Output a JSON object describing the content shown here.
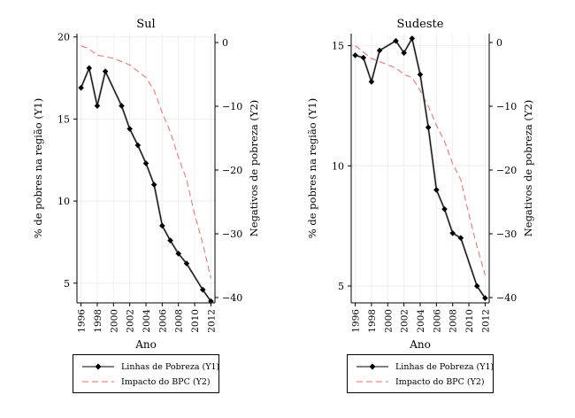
{
  "chart_data": [
    {
      "type": "line",
      "title": "Sul",
      "xlabel": "Ano",
      "ylabel_left": "% de pobres na região (Y1)",
      "ylabel_right": "Negativos de pobreza (Y2)",
      "x": [
        1996,
        1997,
        1998,
        1999,
        2001,
        2002,
        2003,
        2004,
        2005,
        2006,
        2007,
        2008,
        2009,
        2011,
        2012
      ],
      "x_ticks": [
        1996,
        1998,
        2000,
        2002,
        2004,
        2006,
        2008,
        2010,
        2012
      ],
      "xlim": [
        1995.5,
        2012.5
      ],
      "y1_ticks": [
        5,
        10,
        15,
        20
      ],
      "y1_lim": [
        3.8,
        20.2
      ],
      "y2_ticks": [
        0,
        -10,
        -20,
        -30,
        -40
      ],
      "y2_lim": [
        -40,
        0
      ],
      "series": [
        {
          "name": "Linhas de Pobreza (Y1)",
          "axis": "left",
          "style": "line-diamond",
          "values": [
            16.9,
            18.1,
            15.8,
            17.9,
            15.8,
            14.4,
            13.4,
            12.3,
            11.0,
            8.5,
            7.6,
            6.8,
            6.2,
            4.6,
            3.9
          ]
        },
        {
          "name": "Impacto do BPC (Y2)",
          "axis": "right",
          "style": "dashed",
          "x": [
            1996,
            1997,
            1998,
            1999,
            2000,
            2001,
            2002,
            2003,
            2004,
            2005,
            2006,
            2007,
            2008,
            2009,
            2010,
            2011,
            2012
          ],
          "values": [
            -0.5,
            -1.0,
            -2.0,
            -2.2,
            -2.5,
            -3.0,
            -3.5,
            -4.5,
            -5.5,
            -7.5,
            -11.0,
            -14.0,
            -18.0,
            -21.5,
            -27.0,
            -31.5,
            -37.0
          ]
        }
      ]
    },
    {
      "type": "line",
      "title": "Sudeste",
      "xlabel": "Ano",
      "ylabel_left": "% de pobres na região (Y1)",
      "ylabel_right": "Negativos de pobreza (Y2)",
      "x": [
        1996,
        1997,
        1998,
        1999,
        2001,
        2002,
        2003,
        2004,
        2005,
        2006,
        2007,
        2008,
        2009,
        2011,
        2012
      ],
      "x_ticks": [
        1996,
        1998,
        2000,
        2002,
        2004,
        2006,
        2008,
        2010,
        2012
      ],
      "xlim": [
        1995.5,
        2012.5
      ],
      "y1_ticks": [
        5,
        10,
        15
      ],
      "y1_lim": [
        4.3,
        15.5
      ],
      "y2_ticks": [
        0,
        -10,
        -20,
        -30,
        -40
      ],
      "y2_lim": [
        -40,
        0
      ],
      "series": [
        {
          "name": "Linhas de Pobreza (Y1)",
          "axis": "left",
          "style": "line-diamond",
          "values": [
            14.6,
            14.5,
            13.5,
            14.8,
            15.2,
            14.7,
            15.3,
            13.8,
            11.6,
            9.0,
            8.2,
            7.2,
            7.0,
            5.0,
            4.5
          ]
        },
        {
          "name": "Impacto do BPC (Y2)",
          "axis": "right",
          "style": "dashed",
          "x": [
            1996,
            1997,
            1998,
            1999,
            2000,
            2001,
            2002,
            2003,
            2004,
            2005,
            2006,
            2007,
            2008,
            2009,
            2010,
            2011,
            2012
          ],
          "values": [
            -0.5,
            -1.5,
            -2.5,
            -3.0,
            -3.5,
            -4.0,
            -5.0,
            -5.5,
            -7.5,
            -10.0,
            -13.0,
            -15.5,
            -19.0,
            -21.5,
            -27.0,
            -32.0,
            -36.5
          ]
        }
      ]
    }
  ],
  "legend_items": [
    {
      "label": "Linhas de Pobreza (Y1)",
      "style": "line-diamond"
    },
    {
      "label": "Impacto do BPC (Y2)",
      "style": "dashed"
    }
  ],
  "colors": {
    "line": "#000000",
    "dashed": "#ef6a6a",
    "axis": "#000000",
    "grid": "#eeeeee"
  }
}
